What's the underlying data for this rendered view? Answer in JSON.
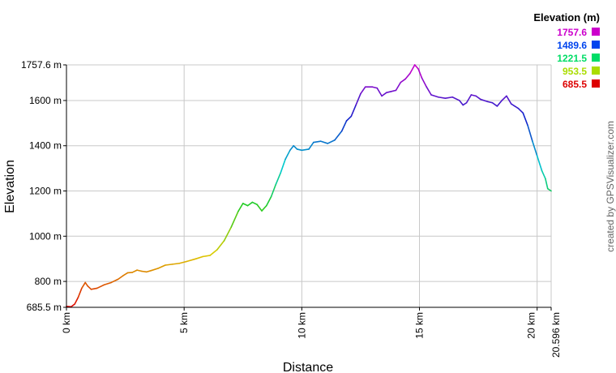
{
  "chart_data": {
    "type": "line",
    "xlabel": "Distance",
    "ylabel": "Elevation",
    "x_unit": "km",
    "y_unit": "m",
    "xlim": [
      0,
      20.596
    ],
    "ylim": [
      685.5,
      1757.6
    ],
    "grid": true,
    "x_ticks": [
      {
        "value": 0,
        "label": "0 km"
      },
      {
        "value": 5,
        "label": "5 km"
      },
      {
        "value": 10,
        "label": "10 km"
      },
      {
        "value": 15,
        "label": "15 km"
      },
      {
        "value": 20,
        "label": "20 km"
      },
      {
        "value": 20.596,
        "label": "20.596 km"
      }
    ],
    "y_ticks": [
      {
        "value": 685.5,
        "label": "685.5 m"
      },
      {
        "value": 800,
        "label": "800 m"
      },
      {
        "value": 1000,
        "label": "1000 m"
      },
      {
        "value": 1200,
        "label": "1200 m"
      },
      {
        "value": 1400,
        "label": "1400 m"
      },
      {
        "value": 1600,
        "label": "1600 m"
      },
      {
        "value": 1757.6,
        "label": "1757.6 m"
      }
    ],
    "legend": {
      "title": "Elevation (m)",
      "placement": "top-right",
      "entries": [
        {
          "label": "1757.6",
          "color": "#cc00cc"
        },
        {
          "label": "1489.6",
          "color": "#0044ee"
        },
        {
          "label": "1221.5",
          "color": "#00dd66"
        },
        {
          "label": "953.5",
          "color": "#aadd00"
        },
        {
          "label": "685.5",
          "color": "#dd0000"
        }
      ]
    },
    "series": [
      {
        "color_by": "elevation",
        "points": [
          [
            0.0,
            690
          ],
          [
            0.2,
            688
          ],
          [
            0.35,
            700
          ],
          [
            0.5,
            730
          ],
          [
            0.65,
            770
          ],
          [
            0.8,
            795
          ],
          [
            0.9,
            780
          ],
          [
            1.05,
            765
          ],
          [
            1.3,
            770
          ],
          [
            1.6,
            785
          ],
          [
            1.9,
            795
          ],
          [
            2.2,
            810
          ],
          [
            2.4,
            825
          ],
          [
            2.6,
            838
          ],
          [
            2.8,
            840
          ],
          [
            3.0,
            850
          ],
          [
            3.2,
            845
          ],
          [
            3.4,
            842
          ],
          [
            3.6,
            848
          ],
          [
            3.9,
            858
          ],
          [
            4.2,
            872
          ],
          [
            4.5,
            876
          ],
          [
            4.8,
            880
          ],
          [
            5.1,
            888
          ],
          [
            5.5,
            900
          ],
          [
            5.8,
            910
          ],
          [
            6.1,
            915
          ],
          [
            6.4,
            940
          ],
          [
            6.7,
            980
          ],
          [
            7.0,
            1040
          ],
          [
            7.3,
            1110
          ],
          [
            7.5,
            1145
          ],
          [
            7.7,
            1135
          ],
          [
            7.9,
            1150
          ],
          [
            8.1,
            1140
          ],
          [
            8.3,
            1112
          ],
          [
            8.5,
            1135
          ],
          [
            8.7,
            1175
          ],
          [
            8.9,
            1230
          ],
          [
            9.1,
            1280
          ],
          [
            9.3,
            1340
          ],
          [
            9.5,
            1380
          ],
          [
            9.65,
            1400
          ],
          [
            9.8,
            1385
          ],
          [
            10.0,
            1380
          ],
          [
            10.3,
            1385
          ],
          [
            10.5,
            1415
          ],
          [
            10.8,
            1420
          ],
          [
            11.1,
            1410
          ],
          [
            11.4,
            1425
          ],
          [
            11.7,
            1465
          ],
          [
            11.9,
            1510
          ],
          [
            12.1,
            1530
          ],
          [
            12.3,
            1580
          ],
          [
            12.5,
            1630
          ],
          [
            12.7,
            1660
          ],
          [
            13.0,
            1660
          ],
          [
            13.2,
            1655
          ],
          [
            13.4,
            1620
          ],
          [
            13.6,
            1635
          ],
          [
            13.8,
            1640
          ],
          [
            14.0,
            1645
          ],
          [
            14.2,
            1680
          ],
          [
            14.4,
            1695
          ],
          [
            14.6,
            1720
          ],
          [
            14.8,
            1757.6
          ],
          [
            14.95,
            1740
          ],
          [
            15.1,
            1700
          ],
          [
            15.3,
            1660
          ],
          [
            15.5,
            1625
          ],
          [
            15.8,
            1615
          ],
          [
            16.1,
            1610
          ],
          [
            16.4,
            1615
          ],
          [
            16.7,
            1600
          ],
          [
            16.85,
            1580
          ],
          [
            17.0,
            1590
          ],
          [
            17.2,
            1625
          ],
          [
            17.4,
            1620
          ],
          [
            17.6,
            1605
          ],
          [
            17.9,
            1595
          ],
          [
            18.1,
            1590
          ],
          [
            18.3,
            1575
          ],
          [
            18.5,
            1600
          ],
          [
            18.7,
            1620
          ],
          [
            18.9,
            1585
          ],
          [
            19.2,
            1565
          ],
          [
            19.4,
            1545
          ],
          [
            19.6,
            1490
          ],
          [
            19.8,
            1420
          ],
          [
            20.0,
            1355
          ],
          [
            20.2,
            1290
          ],
          [
            20.35,
            1255
          ],
          [
            20.45,
            1210
          ],
          [
            20.596,
            1200
          ]
        ]
      }
    ]
  },
  "credit_text": "created by GPSVisualizer.com"
}
